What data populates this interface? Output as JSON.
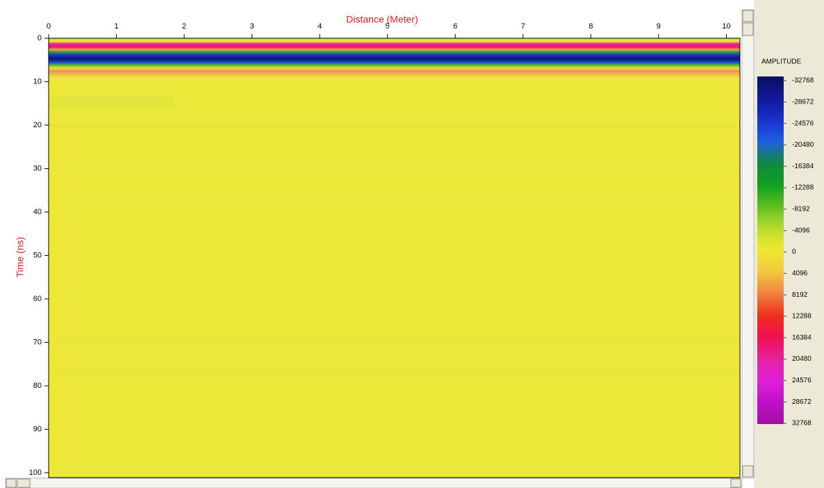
{
  "chart_data": {
    "type": "radargram",
    "x_label": "Distance (Meter)",
    "y_label": "Time (ns)",
    "xlim": [
      0,
      10.2
    ],
    "xticks": [
      0,
      1,
      2,
      3,
      4,
      5,
      6,
      7,
      8,
      9,
      10
    ],
    "ylim": [
      0,
      100
    ],
    "yticks": [
      0,
      10,
      20,
      30,
      40,
      50,
      60,
      70,
      80,
      90,
      100
    ],
    "colorbar": {
      "title": "AMPLITUDE",
      "ticks": [
        -32768,
        -28672,
        -24576,
        -20480,
        -16384,
        -12288,
        -8192,
        -4096,
        0,
        4096,
        8192,
        12288,
        16384,
        20480,
        24576,
        28672,
        32768
      ],
      "colors": [
        "#0a1060",
        "#10189a",
        "#1a30d0",
        "#2060e0",
        "#108840",
        "#10a020",
        "#60c020",
        "#b8dc30",
        "#f2e830",
        "#f0c840",
        "#f08040",
        "#f03020",
        "#f01050",
        "#e820a0",
        "#e020d8",
        "#c010c8",
        "#a010a0"
      ]
    }
  }
}
